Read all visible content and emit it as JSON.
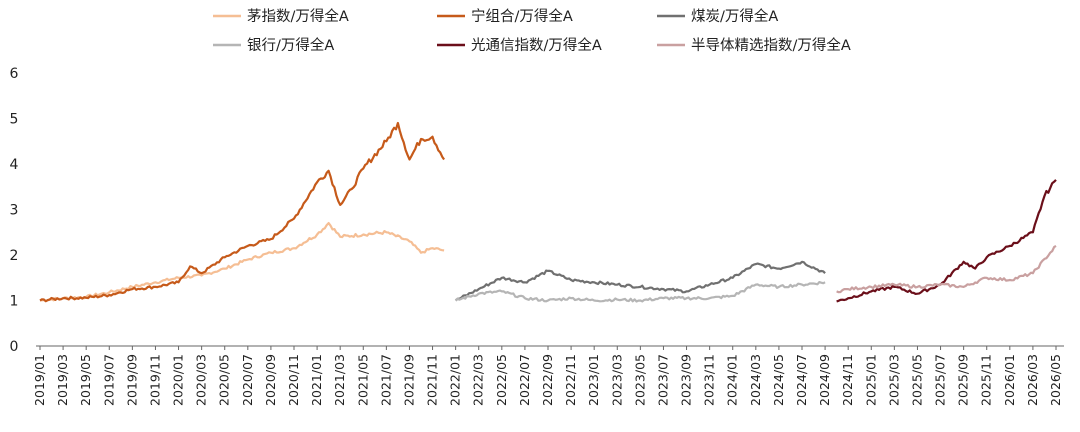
{
  "chart_data": {
    "type": "line",
    "title": "",
    "xlabel": "",
    "ylabel": "",
    "ylim": [
      0,
      6
    ],
    "y_ticks": [
      "0",
      "1",
      "2",
      "3",
      "4",
      "5",
      "6"
    ],
    "x_ticks": [
      "2019/01",
      "2019/03",
      "2019/05",
      "2019/07",
      "2019/09",
      "2019/11",
      "2020/01",
      "2020/03",
      "2020/05",
      "2020/07",
      "2020/09",
      "2020/11",
      "2021/01",
      "2021/03",
      "2021/05",
      "2021/07",
      "2021/09",
      "2021/11",
      "2022/01",
      "2022/03",
      "2022/05",
      "2022/07",
      "2022/09",
      "2022/11",
      "2023/01",
      "2023/03",
      "2023/05",
      "2023/07",
      "2023/09",
      "2023/11",
      "2024/01",
      "2024/03",
      "2024/05",
      "2024/07",
      "2024/09",
      "2024/11",
      "2025/01",
      "2025/03",
      "2025/05",
      "2025/07",
      "2025/09",
      "2025/11",
      "2026/01",
      "2026/03",
      "2026/05"
    ],
    "grid": false,
    "legend_position": "top",
    "series": [
      {
        "name": "茅指数/万得全A",
        "color": "#F5BE94",
        "x": [
          "2019/01",
          "2019/03",
          "2019/05",
          "2019/07",
          "2019/09",
          "2019/11",
          "2020/01",
          "2020/03",
          "2020/05",
          "2020/07",
          "2020/09",
          "2020/11",
          "2021/01",
          "2021/02",
          "2021/03",
          "2021/05",
          "2021/07",
          "2021/09",
          "2021/10",
          "2021/11",
          "2021/12"
        ],
        "values": [
          1.0,
          1.05,
          1.08,
          1.18,
          1.3,
          1.4,
          1.5,
          1.55,
          1.7,
          1.9,
          2.05,
          2.15,
          2.45,
          2.7,
          2.4,
          2.45,
          2.5,
          2.3,
          2.05,
          2.15,
          2.1
        ]
      },
      {
        "name": "宁组合/万得全A",
        "color": "#C65A1A",
        "x": [
          "2019/01",
          "2019/03",
          "2019/05",
          "2019/07",
          "2019/09",
          "2019/11",
          "2020/01",
          "2020/02",
          "2020/03",
          "2020/05",
          "2020/07",
          "2020/09",
          "2020/11",
          "2021/01",
          "2021/02",
          "2021/03",
          "2021/04",
          "2021/05",
          "2021/07",
          "2021/08",
          "2021/09",
          "2021/10",
          "2021/11",
          "2021/12"
        ],
        "values": [
          1.0,
          1.05,
          1.06,
          1.12,
          1.25,
          1.3,
          1.4,
          1.75,
          1.6,
          1.95,
          2.2,
          2.35,
          2.8,
          3.6,
          3.85,
          3.1,
          3.45,
          3.9,
          4.5,
          4.9,
          4.1,
          4.55,
          4.6,
          4.1
        ]
      },
      {
        "name": "煤炭/万得全A",
        "color": "#707070",
        "x": [
          "2022/01",
          "2022/03",
          "2022/05",
          "2022/07",
          "2022/09",
          "2022/11",
          "2023/01",
          "2023/03",
          "2023/05",
          "2023/07",
          "2023/09",
          "2023/11",
          "2024/01",
          "2024/03",
          "2024/05",
          "2024/07",
          "2024/09"
        ],
        "values": [
          1.0,
          1.25,
          1.5,
          1.4,
          1.65,
          1.45,
          1.4,
          1.35,
          1.3,
          1.25,
          1.2,
          1.35,
          1.5,
          1.8,
          1.7,
          1.85,
          1.6
        ]
      },
      {
        "name": "银行/万得全A",
        "color": "#B5B5B5",
        "x": [
          "2022/01",
          "2022/03",
          "2022/05",
          "2022/07",
          "2022/09",
          "2022/11",
          "2023/01",
          "2023/03",
          "2023/05",
          "2023/07",
          "2023/09",
          "2023/11",
          "2024/01",
          "2024/03",
          "2024/05",
          "2024/07",
          "2024/09"
        ],
        "values": [
          1.0,
          1.15,
          1.2,
          1.05,
          1.0,
          1.05,
          1.0,
          1.02,
          1.0,
          1.05,
          1.05,
          1.05,
          1.1,
          1.35,
          1.3,
          1.35,
          1.4
        ]
      },
      {
        "name": "光通信指数/万得全A",
        "color": "#6B0F1A",
        "x": [
          "2024/10",
          "2024/11",
          "2025/01",
          "2025/03",
          "2025/05",
          "2025/07",
          "2025/09",
          "2025/10",
          "2025/11",
          "2026/01",
          "2026/03",
          "2026/04",
          "2026/05"
        ],
        "values": [
          0.98,
          1.05,
          1.2,
          1.3,
          1.15,
          1.35,
          1.85,
          1.7,
          1.95,
          2.2,
          2.5,
          3.3,
          3.65
        ]
      },
      {
        "name": "半导体精选指数/万得全A",
        "color": "#C9A0A0",
        "x": [
          "2024/10",
          "2024/11",
          "2025/01",
          "2025/03",
          "2025/05",
          "2025/07",
          "2025/09",
          "2025/11",
          "2026/01",
          "2026/03",
          "2026/05"
        ],
        "values": [
          1.2,
          1.25,
          1.3,
          1.35,
          1.3,
          1.35,
          1.3,
          1.5,
          1.45,
          1.6,
          2.2
        ]
      }
    ]
  }
}
